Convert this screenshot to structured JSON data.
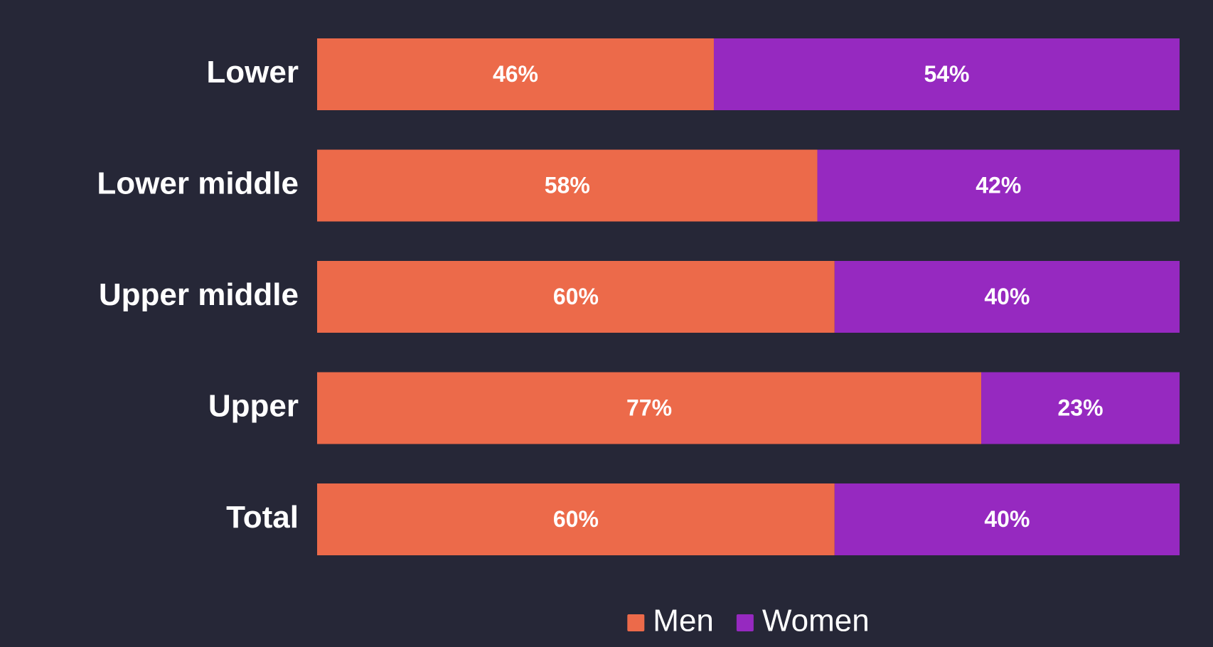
{
  "chart_data": {
    "type": "stacked-bar-horizontal",
    "categories": [
      "Lower",
      "Lower middle",
      "Upper middle",
      "Upper",
      "Total"
    ],
    "series": [
      {
        "name": "Men",
        "color": "#ec6a4a",
        "values": [
          46,
          58,
          60,
          77,
          60
        ],
        "value_labels": [
          "46%",
          "58%",
          "60%",
          "77%",
          "60%"
        ]
      },
      {
        "name": "Women",
        "color": "#9629c0",
        "values": [
          54,
          42,
          40,
          23,
          40
        ],
        "value_labels": [
          "54%",
          "42%",
          "40%",
          "23%",
          "40%"
        ]
      }
    ],
    "xlim": [
      0,
      100
    ],
    "legend": "bottom"
  }
}
